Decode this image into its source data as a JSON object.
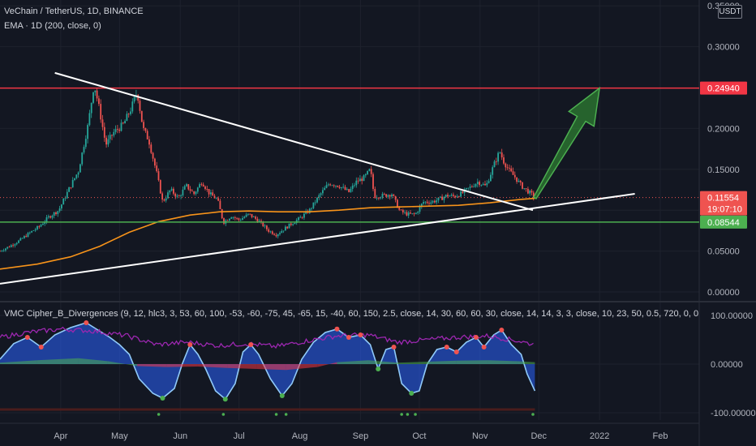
{
  "header": {
    "symbol_line": "VeChain / TetherUS, 1D, BINANCE",
    "ema_line": "EMA · 1D (200, close, 0)",
    "indicator_line": "VMC Cipher_B_Divergences (9, 12, hlc3, 3, 53, 60, 100, -53, -60, -75, 45, -65, 15, -40, 60, 150, 2.5, close, 14, 30, 60, 60, 30, close, 14, 14, 3, 3, close, 10, 23, 50, 0.5, 720, 0, 0, 0, 0, 0, 0, 60, 240, 0, 0",
    "currency": "USDT"
  },
  "colors": {
    "background": "#131722",
    "resistance_line": "#f23645",
    "support_line": "#4caf50",
    "trendline": "#ffffff",
    "ema": "#f7931a",
    "candle_up": "#26a69a",
    "candle_down": "#ef5350",
    "arrow": "#4caf50",
    "wave_blue": "#2962ff",
    "money_flow_green": "#4caf50",
    "money_flow_red": "#f23645",
    "rsi_purple": "#9c27b0"
  },
  "chart_data": [
    {
      "type": "candlestick",
      "title": "VeChain / TetherUS, 1D, BINANCE",
      "x_ticks": [
        "Apr",
        "May",
        "Jun",
        "Jul",
        "Aug",
        "Sep",
        "Oct",
        "Nov",
        "Dec",
        "2022",
        "Feb"
      ],
      "y_ticks": [
        "0.00000",
        "0.05000",
        "0.10000",
        "0.15000",
        "0.20000",
        "0.30000",
        "0.35000"
      ],
      "ylim": [
        0,
        0.35
      ],
      "price_labels": {
        "resistance": "0.24940",
        "current_price": "0.11554",
        "countdown": "19:07:10",
        "support": "0.08544"
      },
      "horizontal_levels": [
        {
          "name": "resistance",
          "value": 0.2494
        },
        {
          "name": "support",
          "value": 0.08544
        }
      ],
      "trendlines": [
        {
          "from": [
            "2021-03-29",
            0.268
          ],
          "to": [
            "2021-11-28",
            0.1
          ]
        },
        {
          "from": [
            "2021-03-01",
            0.01
          ],
          "to": [
            "2022-01-19",
            0.12
          ]
        }
      ],
      "arrow": {
        "from": [
          "2021-11-29",
          0.115
        ],
        "to": [
          "2022-01-01",
          0.2494
        ]
      },
      "price_series": [
        [
          "2021-03-01",
          0.05
        ],
        [
          "2021-03-06",
          0.056
        ],
        [
          "2021-03-11",
          0.063
        ],
        [
          "2021-03-16",
          0.072
        ],
        [
          "2021-03-21",
          0.08
        ],
        [
          "2021-03-26",
          0.092
        ],
        [
          "2021-03-31",
          0.1
        ],
        [
          "2021-04-05",
          0.125
        ],
        [
          "2021-04-10",
          0.148
        ],
        [
          "2021-04-15",
          0.205
        ],
        [
          "2021-04-18",
          0.255
        ],
        [
          "2021-04-21",
          0.22
        ],
        [
          "2021-04-24",
          0.18
        ],
        [
          "2021-04-28",
          0.195
        ],
        [
          "2021-05-03",
          0.205
        ],
        [
          "2021-05-07",
          0.225
        ],
        [
          "2021-05-10",
          0.245
        ],
        [
          "2021-05-13",
          0.2
        ],
        [
          "2021-05-16",
          0.185
        ],
        [
          "2021-05-20",
          0.145
        ],
        [
          "2021-05-23",
          0.11
        ],
        [
          "2021-05-27",
          0.125
        ],
        [
          "2021-05-31",
          0.115
        ],
        [
          "2021-06-04",
          0.13
        ],
        [
          "2021-06-08",
          0.12
        ],
        [
          "2021-06-12",
          0.135
        ],
        [
          "2021-06-16",
          0.12
        ],
        [
          "2021-06-20",
          0.113
        ],
        [
          "2021-06-23",
          0.085
        ],
        [
          "2021-06-27",
          0.093
        ],
        [
          "2021-07-01",
          0.088
        ],
        [
          "2021-07-06",
          0.095
        ],
        [
          "2021-07-11",
          0.087
        ],
        [
          "2021-07-16",
          0.075
        ],
        [
          "2021-07-20",
          0.07
        ],
        [
          "2021-07-24",
          0.077
        ],
        [
          "2021-07-28",
          0.084
        ],
        [
          "2021-08-01",
          0.09
        ],
        [
          "2021-08-06",
          0.1
        ],
        [
          "2021-08-11",
          0.118
        ],
        [
          "2021-08-16",
          0.133
        ],
        [
          "2021-08-21",
          0.13
        ],
        [
          "2021-08-26",
          0.122
        ],
        [
          "2021-08-30",
          0.135
        ],
        [
          "2021-09-03",
          0.14
        ],
        [
          "2021-09-06",
          0.15
        ],
        [
          "2021-09-08",
          0.117
        ],
        [
          "2021-09-13",
          0.118
        ],
        [
          "2021-09-17",
          0.12
        ],
        [
          "2021-09-21",
          0.099
        ],
        [
          "2021-09-25",
          0.095
        ],
        [
          "2021-09-29",
          0.095
        ],
        [
          "2021-10-03",
          0.11
        ],
        [
          "2021-10-07",
          0.11
        ],
        [
          "2021-10-11",
          0.113
        ],
        [
          "2021-10-15",
          0.118
        ],
        [
          "2021-10-19",
          0.117
        ],
        [
          "2021-10-23",
          0.121
        ],
        [
          "2021-10-27",
          0.128
        ],
        [
          "2021-10-31",
          0.135
        ],
        [
          "2021-11-04",
          0.129
        ],
        [
          "2021-11-08",
          0.155
        ],
        [
          "2021-11-11",
          0.172
        ],
        [
          "2021-11-13",
          0.16
        ],
        [
          "2021-11-16",
          0.148
        ],
        [
          "2021-11-19",
          0.14
        ],
        [
          "2021-11-22",
          0.13
        ],
        [
          "2021-11-25",
          0.124
        ],
        [
          "2021-11-28",
          0.118
        ],
        [
          "2021-11-29",
          0.1155
        ]
      ],
      "ema_series": [
        [
          "2021-03-01",
          0.028
        ],
        [
          "2021-03-20",
          0.034
        ],
        [
          "2021-04-06",
          0.043
        ],
        [
          "2021-04-21",
          0.056
        ],
        [
          "2021-05-06",
          0.073
        ],
        [
          "2021-05-21",
          0.086
        ],
        [
          "2021-06-06",
          0.094
        ],
        [
          "2021-06-21",
          0.098
        ],
        [
          "2021-07-06",
          0.099
        ],
        [
          "2021-07-21",
          0.098
        ],
        [
          "2021-08-06",
          0.098
        ],
        [
          "2021-08-21",
          0.1
        ],
        [
          "2021-09-06",
          0.103
        ],
        [
          "2021-09-21",
          0.104
        ],
        [
          "2021-10-06",
          0.105
        ],
        [
          "2021-10-21",
          0.106
        ],
        [
          "2021-11-06",
          0.109
        ],
        [
          "2021-11-21",
          0.113
        ],
        [
          "2021-11-29",
          0.1145
        ]
      ]
    },
    {
      "type": "line",
      "title": "VMC Cipher_B_Divergences",
      "y_ticks": [
        "100.00000",
        "0.00000",
        "-100.00000"
      ],
      "ylim": [
        -100,
        100
      ],
      "series": [
        {
          "values": [
            [
              "2021-03-01",
              10
            ],
            [
              "2021-03-08",
              42
            ],
            [
              "2021-03-15",
              55
            ],
            [
              "2021-03-22",
              35
            ],
            [
              "2021-03-29",
              60
            ],
            [
              "2021-04-06",
              75
            ],
            [
              "2021-04-14",
              85
            ],
            [
              "2021-04-20",
              70
            ],
            [
              "2021-04-26",
              55
            ],
            [
              "2021-05-01",
              40
            ],
            [
              "2021-05-06",
              20
            ],
            [
              "2021-05-11",
              -30
            ],
            [
              "2021-05-18",
              -60
            ],
            [
              "2021-05-23",
              -70
            ],
            [
              "2021-05-29",
              -50
            ],
            [
              "2021-06-02",
              0
            ],
            [
              "2021-06-06",
              40
            ],
            [
              "2021-06-10",
              20
            ],
            [
              "2021-06-14",
              -10
            ],
            [
              "2021-06-19",
              -55
            ],
            [
              "2021-06-24",
              -72
            ],
            [
              "2021-06-29",
              -40
            ],
            [
              "2021-07-03",
              25
            ],
            [
              "2021-07-07",
              40
            ],
            [
              "2021-07-11",
              20
            ],
            [
              "2021-07-17",
              -30
            ],
            [
              "2021-07-23",
              -65
            ],
            [
              "2021-07-28",
              -40
            ],
            [
              "2021-08-02",
              10
            ],
            [
              "2021-08-08",
              45
            ],
            [
              "2021-08-14",
              65
            ],
            [
              "2021-08-20",
              72
            ],
            [
              "2021-08-26",
              55
            ],
            [
              "2021-09-01",
              60
            ],
            [
              "2021-09-06",
              40
            ],
            [
              "2021-09-10",
              -10
            ],
            [
              "2021-09-14",
              30
            ],
            [
              "2021-09-18",
              35
            ],
            [
              "2021-09-22",
              -40
            ],
            [
              "2021-09-27",
              -60
            ],
            [
              "2021-10-01",
              -55
            ],
            [
              "2021-10-05",
              0
            ],
            [
              "2021-10-10",
              30
            ],
            [
              "2021-10-15",
              35
            ],
            [
              "2021-10-20",
              25
            ],
            [
              "2021-10-25",
              45
            ],
            [
              "2021-10-30",
              55
            ],
            [
              "2021-11-03",
              35
            ],
            [
              "2021-11-08",
              60
            ],
            [
              "2021-11-12",
              70
            ],
            [
              "2021-11-17",
              40
            ],
            [
              "2021-11-22",
              20
            ],
            [
              "2021-11-25",
              -20
            ],
            [
              "2021-11-29",
              -55
            ]
          ]
        },
        {
          "values": [
            [
              "2021-03-01",
              3
            ],
            [
              "2021-03-20",
              8
            ],
            [
              "2021-04-10",
              12
            ],
            [
              "2021-04-25",
              6
            ],
            [
              "2021-05-10",
              -4
            ],
            [
              "2021-05-25",
              -6
            ],
            [
              "2021-06-10",
              -5
            ],
            [
              "2021-06-25",
              -8
            ],
            [
              "2021-07-10",
              -10
            ],
            [
              "2021-07-25",
              -12
            ],
            [
              "2021-08-10",
              -6
            ],
            [
              "2021-08-20",
              4
            ],
            [
              "2021-09-05",
              8
            ],
            [
              "2021-09-20",
              3
            ],
            [
              "2021-10-05",
              5
            ],
            [
              "2021-10-20",
              7
            ],
            [
              "2021-11-05",
              8
            ],
            [
              "2021-11-20",
              6
            ],
            [
              "2021-11-29",
              4
            ]
          ]
        },
        {
          "values": [
            [
              "2021-03-01",
              55
            ],
            [
              "2021-03-15",
              65
            ],
            [
              "2021-04-01",
              72
            ],
            [
              "2021-04-18",
              68
            ],
            [
              "2021-05-05",
              58
            ],
            [
              "2021-05-20",
              40
            ],
            [
              "2021-06-05",
              45
            ],
            [
              "2021-06-20",
              38
            ],
            [
              "2021-07-05",
              42
            ],
            [
              "2021-07-20",
              36
            ],
            [
              "2021-08-05",
              48
            ],
            [
              "2021-08-20",
              58
            ],
            [
              "2021-09-05",
              60
            ],
            [
              "2021-09-20",
              45
            ],
            [
              "2021-10-05",
              50
            ],
            [
              "2021-10-20",
              55
            ],
            [
              "2021-11-05",
              58
            ],
            [
              "2021-11-20",
              48
            ],
            [
              "2021-11-29",
              40
            ]
          ]
        }
      ]
    }
  ]
}
